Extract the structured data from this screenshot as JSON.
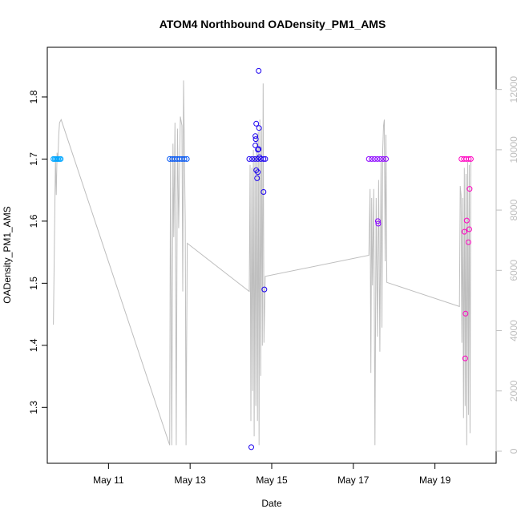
{
  "chart_data": {
    "type": "scatter",
    "title": "ATOM4 Northbound OADensity_PM1_AMS",
    "xlabel": "Date",
    "ylabel": "OADensity_PM1_AMS",
    "xlim": [
      9.5,
      20.5
    ],
    "ylim": [
      1.21,
      1.88
    ],
    "x_ticks": [
      {
        "value": 11,
        "label": "May 11"
      },
      {
        "value": 13,
        "label": "May 13"
      },
      {
        "value": 15,
        "label": "May 15"
      },
      {
        "value": 17,
        "label": "May 17"
      },
      {
        "value": 19,
        "label": "May 19"
      }
    ],
    "y_ticks": [
      {
        "value": 1.3,
        "label": "1.3"
      },
      {
        "value": 1.4,
        "label": "1.4"
      },
      {
        "value": 1.5,
        "label": "1.5"
      },
      {
        "value": 1.6,
        "label": "1.6"
      },
      {
        "value": 1.7,
        "label": "1.7"
      },
      {
        "value": 1.8,
        "label": "1.8"
      }
    ],
    "y2lim": [
      -400,
      13400
    ],
    "y2_ticks": [
      {
        "value": 0,
        "label": "0"
      },
      {
        "value": 2000,
        "label": "2000"
      },
      {
        "value": 4000,
        "label": "4000"
      },
      {
        "value": 6000,
        "label": "6000"
      },
      {
        "value": 8000,
        "label": "8000"
      },
      {
        "value": 10000,
        "label": "10000"
      },
      {
        "value": 12000,
        "label": "12000"
      }
    ],
    "series_colors": [
      "#00a6ff",
      "#0055f5",
      "#1a00f0",
      "#8a00ff",
      "#ff00c0"
    ],
    "line_color": "#bebebe",
    "scatter": [
      {
        "x": 9.65,
        "y": 1.7,
        "c": 0
      },
      {
        "x": 9.68,
        "y": 1.7,
        "c": 0
      },
      {
        "x": 9.71,
        "y": 1.7,
        "c": 0
      },
      {
        "x": 9.74,
        "y": 1.7,
        "c": 0
      },
      {
        "x": 9.77,
        "y": 1.7,
        "c": 0
      },
      {
        "x": 9.8,
        "y": 1.7,
        "c": 0
      },
      {
        "x": 9.83,
        "y": 1.7,
        "c": 0
      },
      {
        "x": 12.5,
        "y": 1.7,
        "c": 1
      },
      {
        "x": 12.56,
        "y": 1.7,
        "c": 1
      },
      {
        "x": 12.62,
        "y": 1.7,
        "c": 1
      },
      {
        "x": 12.68,
        "y": 1.7,
        "c": 1
      },
      {
        "x": 12.74,
        "y": 1.7,
        "c": 1
      },
      {
        "x": 12.8,
        "y": 1.7,
        "c": 1
      },
      {
        "x": 12.86,
        "y": 1.7,
        "c": 1
      },
      {
        "x": 12.92,
        "y": 1.7,
        "c": 1
      },
      {
        "x": 14.45,
        "y": 1.7,
        "c": 2
      },
      {
        "x": 14.52,
        "y": 1.7,
        "c": 2
      },
      {
        "x": 14.59,
        "y": 1.7,
        "c": 2
      },
      {
        "x": 14.66,
        "y": 1.7,
        "c": 2
      },
      {
        "x": 14.73,
        "y": 1.7,
        "c": 2
      },
      {
        "x": 14.8,
        "y": 1.7,
        "c": 2
      },
      {
        "x": 14.84,
        "y": 1.7,
        "c": 2
      },
      {
        "x": 14.5,
        "y": 1.236,
        "c": 2
      },
      {
        "x": 14.62,
        "y": 1.757,
        "c": 2
      },
      {
        "x": 14.6,
        "y": 1.737,
        "c": 2
      },
      {
        "x": 14.61,
        "y": 1.732,
        "c": 2
      },
      {
        "x": 14.6,
        "y": 1.722,
        "c": 2
      },
      {
        "x": 14.66,
        "y": 1.715,
        "c": 2
      },
      {
        "x": 14.68,
        "y": 1.716,
        "c": 2
      },
      {
        "x": 14.7,
        "y": 1.703,
        "c": 2
      },
      {
        "x": 14.62,
        "y": 1.682,
        "c": 2
      },
      {
        "x": 14.66,
        "y": 1.679,
        "c": 2
      },
      {
        "x": 14.64,
        "y": 1.669,
        "c": 2
      },
      {
        "x": 14.69,
        "y": 1.75,
        "c": 2
      },
      {
        "x": 14.68,
        "y": 1.842,
        "c": 2
      },
      {
        "x": 14.8,
        "y": 1.647,
        "c": 2
      },
      {
        "x": 14.82,
        "y": 1.49,
        "c": 2
      },
      {
        "x": 17.38,
        "y": 1.7,
        "c": 3
      },
      {
        "x": 17.45,
        "y": 1.7,
        "c": 3
      },
      {
        "x": 17.52,
        "y": 1.7,
        "c": 3
      },
      {
        "x": 17.59,
        "y": 1.7,
        "c": 3
      },
      {
        "x": 17.66,
        "y": 1.7,
        "c": 3
      },
      {
        "x": 17.73,
        "y": 1.7,
        "c": 3
      },
      {
        "x": 17.8,
        "y": 1.7,
        "c": 3
      },
      {
        "x": 17.6,
        "y": 1.6,
        "c": 3
      },
      {
        "x": 17.61,
        "y": 1.596,
        "c": 3
      },
      {
        "x": 19.65,
        "y": 1.7,
        "c": 4
      },
      {
        "x": 19.71,
        "y": 1.7,
        "c": 4
      },
      {
        "x": 19.77,
        "y": 1.7,
        "c": 4
      },
      {
        "x": 19.83,
        "y": 1.7,
        "c": 4
      },
      {
        "x": 19.88,
        "y": 1.7,
        "c": 4
      },
      {
        "x": 19.85,
        "y": 1.652,
        "c": 4
      },
      {
        "x": 19.78,
        "y": 1.601,
        "c": 4
      },
      {
        "x": 19.84,
        "y": 1.587,
        "c": 4
      },
      {
        "x": 19.72,
        "y": 1.583,
        "c": 4
      },
      {
        "x": 19.82,
        "y": 1.566,
        "c": 4
      },
      {
        "x": 19.75,
        "y": 1.451,
        "c": 4
      },
      {
        "x": 19.74,
        "y": 1.379,
        "c": 4
      }
    ],
    "line": [
      [
        9.65,
        4200
      ],
      [
        9.7,
        9700
      ],
      [
        9.72,
        8500
      ],
      [
        9.74,
        9900
      ],
      [
        9.76,
        9600
      ],
      [
        9.78,
        10500
      ],
      [
        9.8,
        10900
      ],
      [
        9.84,
        11000
      ],
      [
        12.5,
        200
      ],
      [
        12.52,
        9800
      ],
      [
        12.55,
        200
      ],
      [
        12.58,
        10200
      ],
      [
        12.6,
        7100
      ],
      [
        12.63,
        10900
      ],
      [
        12.66,
        200
      ],
      [
        12.69,
        10700
      ],
      [
        12.72,
        7400
      ],
      [
        12.76,
        11100
      ],
      [
        12.8,
        10800
      ],
      [
        12.82,
        5300
      ],
      [
        12.84,
        12300
      ],
      [
        12.88,
        7600
      ],
      [
        12.9,
        200
      ],
      [
        12.93,
        6900
      ],
      [
        14.45,
        5300
      ],
      [
        14.47,
        9500
      ],
      [
        14.49,
        1000
      ],
      [
        14.51,
        9400
      ],
      [
        14.53,
        2000
      ],
      [
        14.55,
        10000
      ],
      [
        14.57,
        500
      ],
      [
        14.59,
        9800
      ],
      [
        14.61,
        1500
      ],
      [
        14.63,
        10500
      ],
      [
        14.65,
        1000
      ],
      [
        14.67,
        10600
      ],
      [
        14.69,
        200
      ],
      [
        14.71,
        11000
      ],
      [
        14.73,
        2500
      ],
      [
        14.75,
        10700
      ],
      [
        14.77,
        3500
      ],
      [
        14.79,
        12200
      ],
      [
        14.81,
        3600
      ],
      [
        14.84,
        5800
      ],
      [
        17.38,
        6500
      ],
      [
        17.41,
        8700
      ],
      [
        17.43,
        2600
      ],
      [
        17.45,
        8400
      ],
      [
        17.47,
        5500
      ],
      [
        17.5,
        8700
      ],
      [
        17.53,
        200
      ],
      [
        17.56,
        8400
      ],
      [
        17.59,
        3800
      ],
      [
        17.62,
        9000
      ],
      [
        17.65,
        3300
      ],
      [
        17.68,
        9600
      ],
      [
        17.7,
        4100
      ],
      [
        17.72,
        10000
      ],
      [
        17.74,
        10800
      ],
      [
        17.76,
        11000
      ],
      [
        17.78,
        6300
      ],
      [
        17.8,
        10500
      ],
      [
        17.82,
        5600
      ],
      [
        19.6,
        4800
      ],
      [
        19.62,
        8800
      ],
      [
        19.64,
        8500
      ],
      [
        19.66,
        3600
      ],
      [
        19.68,
        8400
      ],
      [
        19.7,
        1100
      ],
      [
        19.72,
        9400
      ],
      [
        19.74,
        1500
      ],
      [
        19.76,
        9200
      ],
      [
        19.78,
        200
      ],
      [
        19.8,
        9600
      ],
      [
        19.82,
        1200
      ],
      [
        19.84,
        9500
      ],
      [
        19.86,
        600
      ],
      [
        19.88,
        9700
      ]
    ]
  }
}
